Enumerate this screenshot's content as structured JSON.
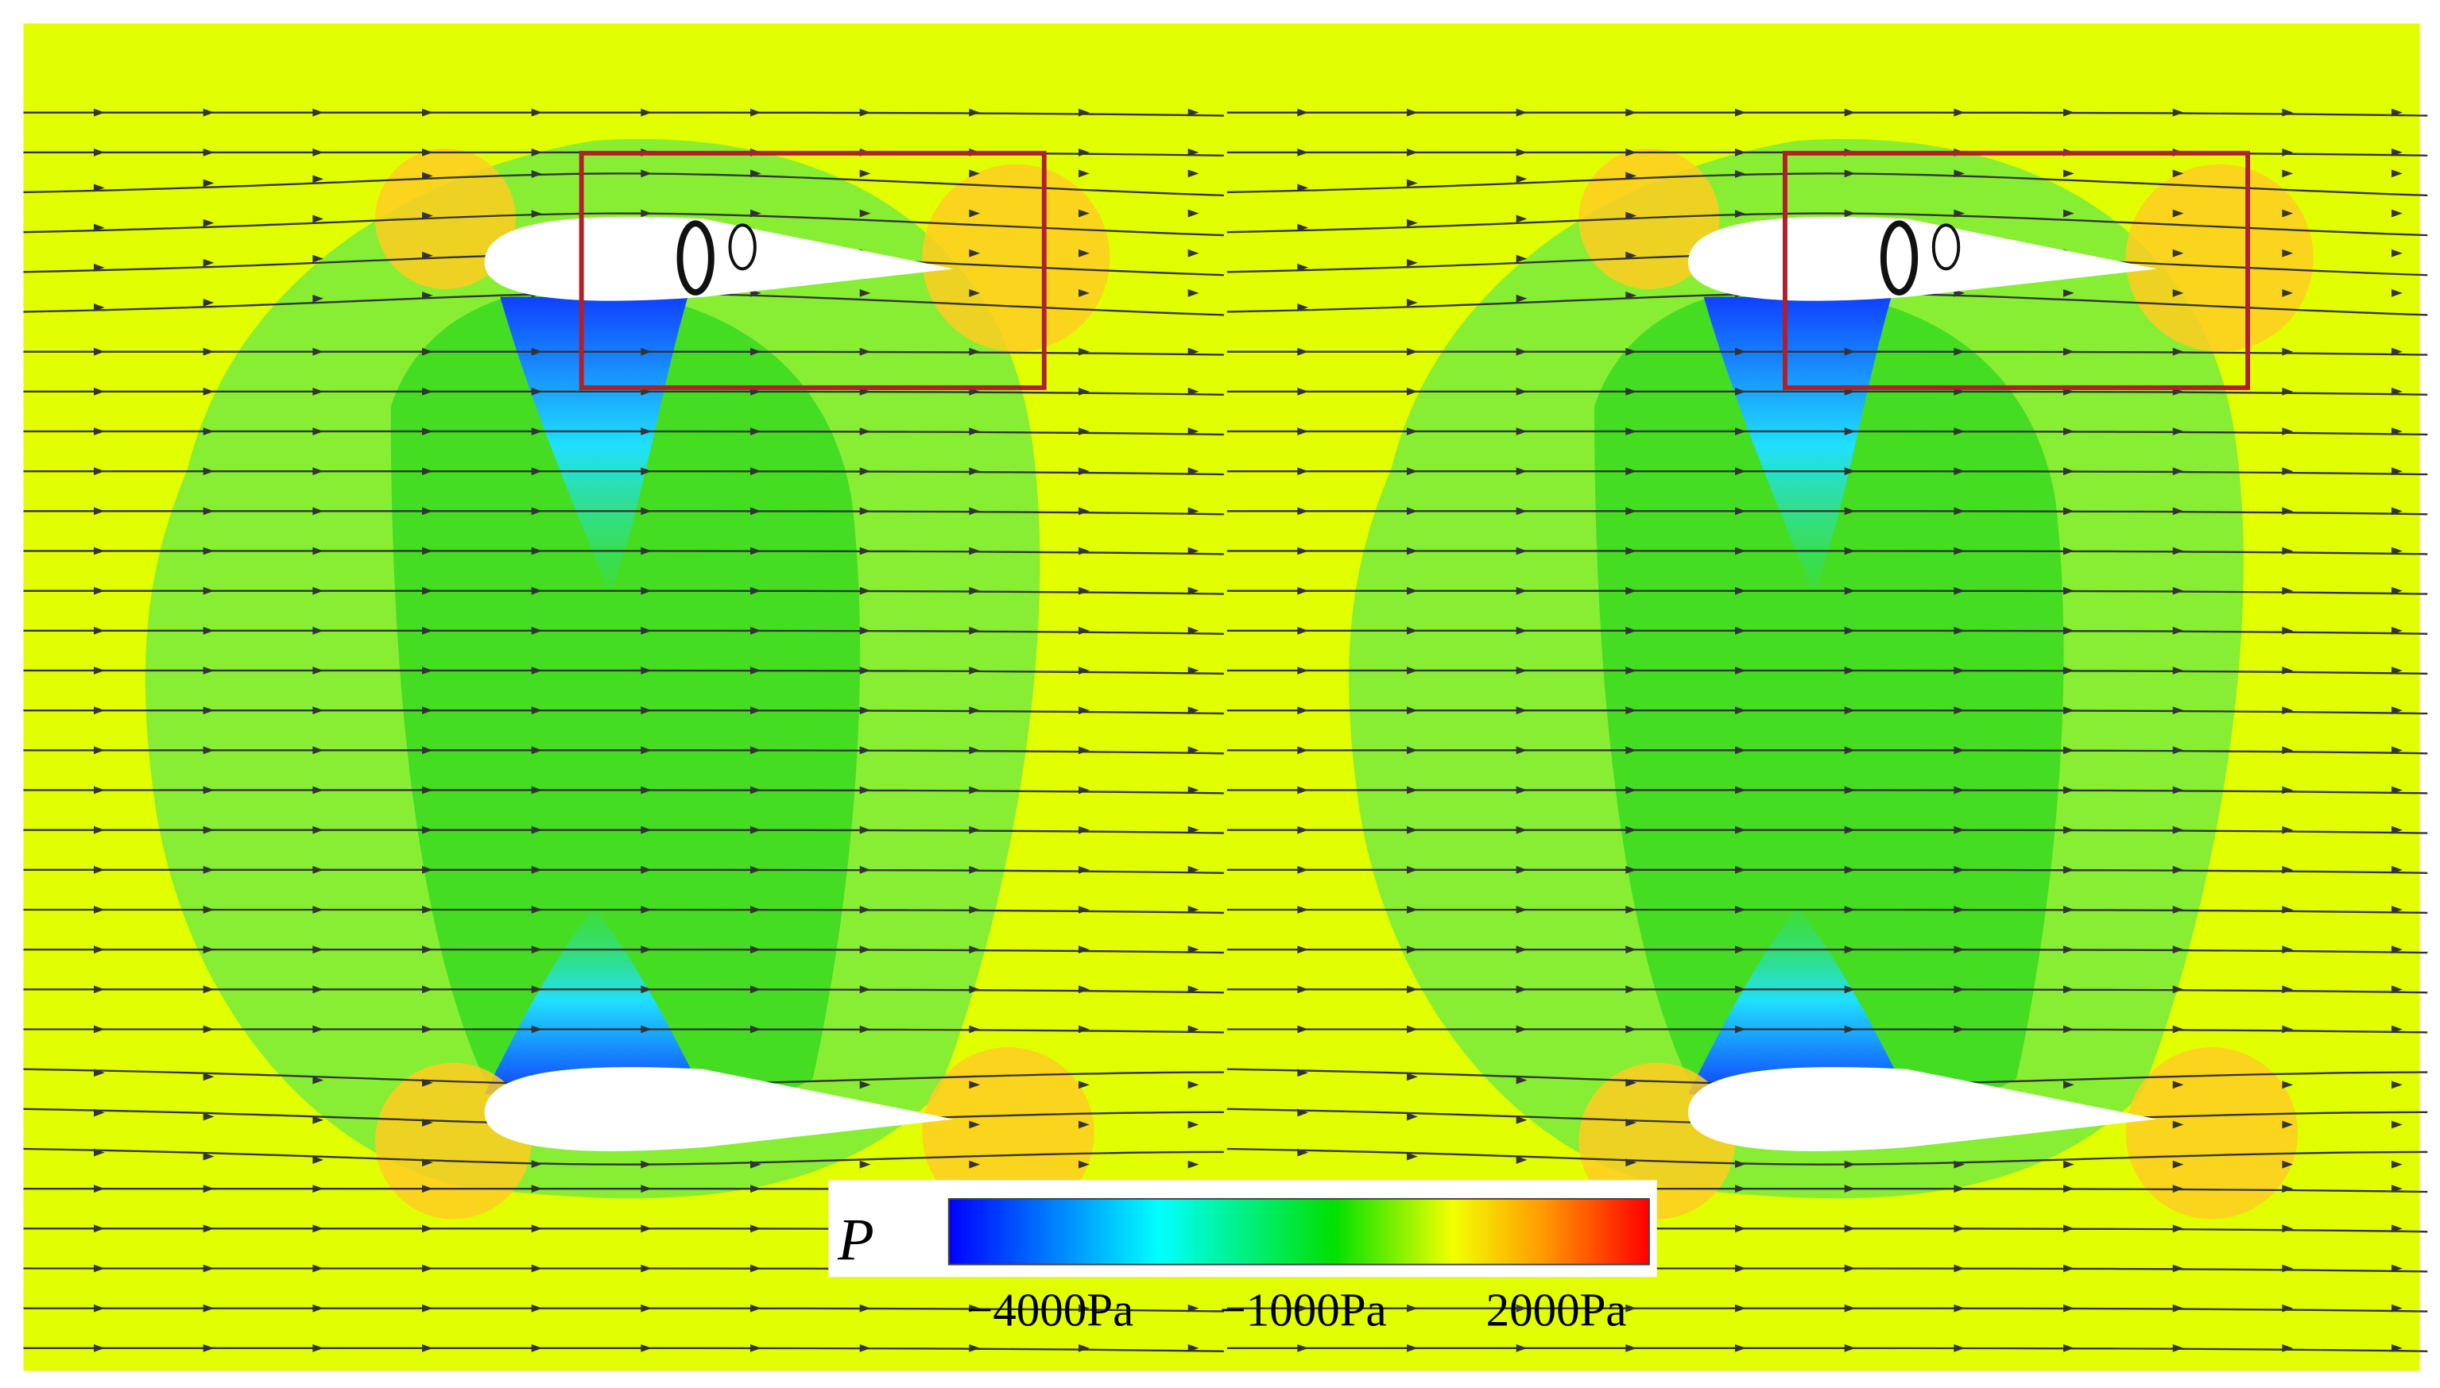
{
  "colorbar": {
    "label": "P",
    "range": [
      -5200,
      3100
    ],
    "ticks": [
      {
        "value": -4000,
        "label": "−4000Pa"
      },
      {
        "value": -1000,
        "label": "−1000Pa"
      },
      {
        "value": 2000,
        "label": "2000Pa"
      }
    ]
  }
}
